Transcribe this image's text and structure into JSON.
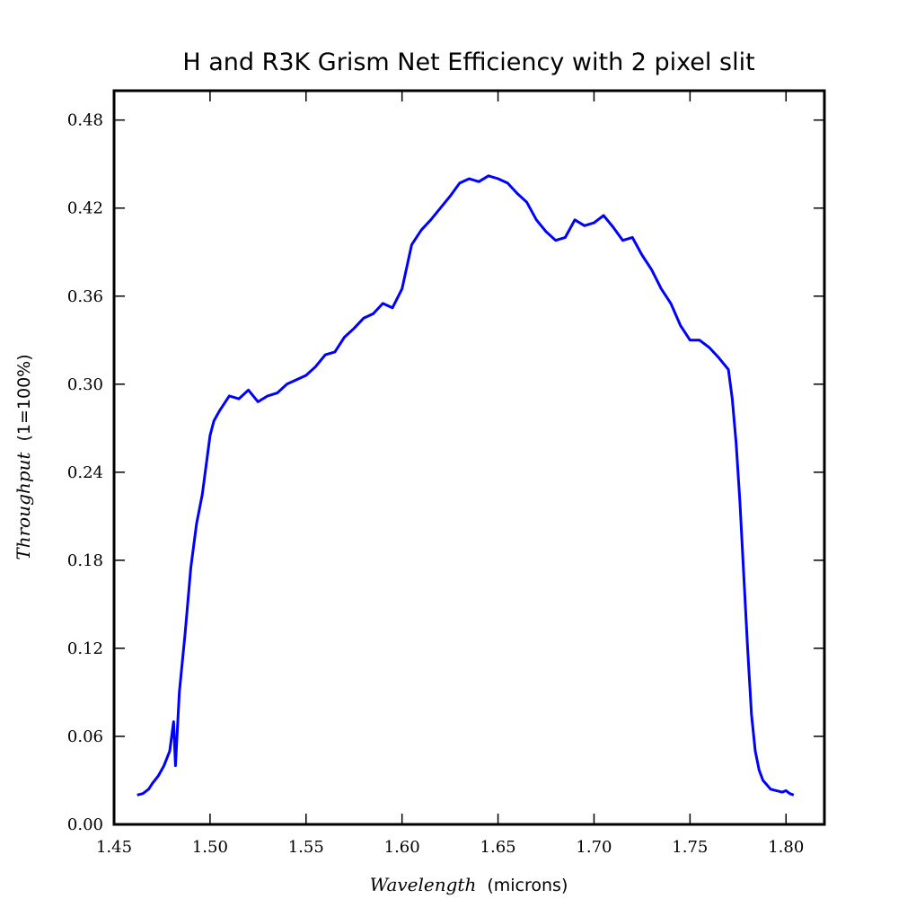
{
  "chart_data": {
    "type": "line",
    "title": "H and R3K Grism Net Efficiency with 2 pixel slit",
    "xlabel_italic": "Wavelength",
    "xlabel_unit": "(microns)",
    "ylabel_italic": "Throughput",
    "ylabel_unit": "(1=100%)",
    "xlim": [
      1.45,
      1.82
    ],
    "ylim": [
      0.0,
      0.5
    ],
    "xticks": [
      "1.45",
      "1.50",
      "1.55",
      "1.60",
      "1.65",
      "1.70",
      "1.75",
      "1.80"
    ],
    "yticks": [
      "0.00",
      "0.06",
      "0.12",
      "0.18",
      "0.24",
      "0.30",
      "0.36",
      "0.42",
      "0.48"
    ],
    "grid": false,
    "line_color": "#0000ff",
    "series": [
      {
        "x": [
          1.462,
          1.465,
          1.468,
          1.47,
          1.473,
          1.476,
          1.479,
          1.481,
          1.482,
          1.484,
          1.487,
          1.49,
          1.493,
          1.496,
          1.498,
          1.5,
          1.502,
          1.505,
          1.51,
          1.515,
          1.52,
          1.525,
          1.53,
          1.535,
          1.54,
          1.545,
          1.55,
          1.555,
          1.56,
          1.565,
          1.57,
          1.575,
          1.58,
          1.585,
          1.59,
          1.595,
          1.6,
          1.605,
          1.61,
          1.615,
          1.62,
          1.625,
          1.63,
          1.635,
          1.64,
          1.645,
          1.65,
          1.655,
          1.66,
          1.665,
          1.67,
          1.675,
          1.68,
          1.685,
          1.69,
          1.695,
          1.7,
          1.705,
          1.71,
          1.715,
          1.72,
          1.725,
          1.73,
          1.735,
          1.74,
          1.745,
          1.75,
          1.755,
          1.76,
          1.765,
          1.77,
          1.772,
          1.774,
          1.776,
          1.778,
          1.78,
          1.782,
          1.784,
          1.786,
          1.788,
          1.79,
          1.792,
          1.795,
          1.798,
          1.8,
          1.802,
          1.804
        ],
        "y": [
          0.02,
          0.021,
          0.024,
          0.028,
          0.033,
          0.04,
          0.05,
          0.07,
          0.04,
          0.09,
          0.13,
          0.175,
          0.205,
          0.225,
          0.245,
          0.265,
          0.275,
          0.282,
          0.292,
          0.29,
          0.296,
          0.288,
          0.292,
          0.294,
          0.3,
          0.303,
          0.306,
          0.312,
          0.32,
          0.322,
          0.332,
          0.338,
          0.345,
          0.348,
          0.355,
          0.352,
          0.365,
          0.395,
          0.405,
          0.412,
          0.42,
          0.428,
          0.437,
          0.44,
          0.438,
          0.442,
          0.44,
          0.437,
          0.43,
          0.424,
          0.412,
          0.404,
          0.398,
          0.4,
          0.412,
          0.408,
          0.41,
          0.415,
          0.407,
          0.398,
          0.4,
          0.388,
          0.378,
          0.365,
          0.355,
          0.34,
          0.33,
          0.33,
          0.325,
          0.318,
          0.31,
          0.29,
          0.26,
          0.22,
          0.17,
          0.12,
          0.075,
          0.05,
          0.037,
          0.03,
          0.027,
          0.024,
          0.023,
          0.022,
          0.023,
          0.021,
          0.02
        ]
      }
    ]
  }
}
